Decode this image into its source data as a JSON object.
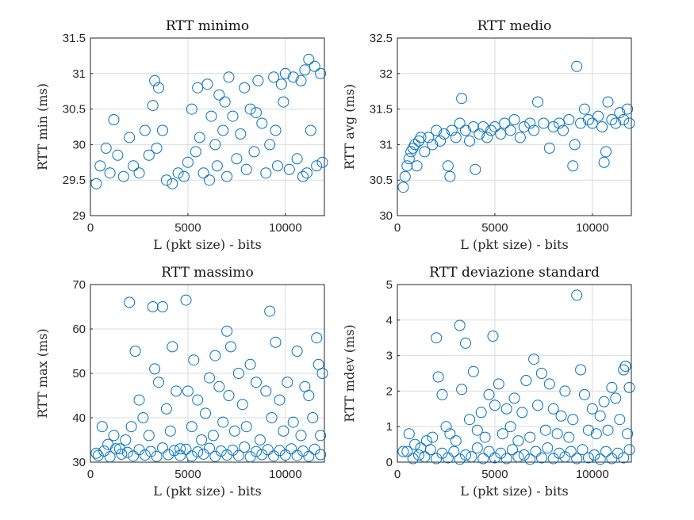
{
  "marker_color": "#0072BD",
  "chart_data": [
    {
      "type": "scatter",
      "title": "RTT minimo",
      "xlabel": "L (pkt size) - bits",
      "ylabel": "RTT min (ms)",
      "xlim": [
        0,
        12000
      ],
      "ylim": [
        29,
        31.5
      ],
      "xticks": [
        0,
        5000,
        10000
      ],
      "yticks": [
        29,
        29.5,
        30,
        30.5,
        31,
        31.5
      ],
      "ytick_labels": [
        "29",
        "29.5",
        "30",
        "30.5",
        "31",
        "31.5"
      ],
      "grid": true,
      "series": [
        {
          "x": [
            300,
            500,
            800,
            1000,
            1200,
            1400,
            1700,
            2000,
            2200,
            2500,
            2800,
            3000,
            3200,
            3400,
            3500,
            3700,
            3900,
            4200,
            4500,
            4800,
            5000,
            5200,
            5400,
            5500,
            5600,
            5800,
            6000,
            6100,
            6200,
            6400,
            6500,
            6600,
            6800,
            7000,
            7100,
            7300,
            7500,
            7700,
            7900,
            8000,
            8200,
            8400,
            8600,
            8800,
            9000,
            9200,
            9400,
            9500,
            9600,
            9800,
            10000,
            10200,
            10400,
            10600,
            10800,
            11000,
            11100,
            11300,
            11500,
            11600,
            11800,
            11900,
            3300,
            6900,
            8500,
            9900,
            10900,
            11200
          ],
          "y": [
            29.45,
            29.7,
            29.95,
            29.6,
            30.35,
            29.85,
            29.55,
            30.1,
            29.7,
            29.6,
            30.2,
            29.85,
            30.55,
            29.95,
            30.8,
            30.2,
            29.5,
            29.45,
            29.6,
            29.55,
            29.75,
            30.5,
            29.9,
            30.8,
            30.1,
            29.6,
            30.85,
            29.5,
            30.4,
            30.0,
            29.7,
            30.7,
            30.2,
            29.55,
            30.95,
            30.4,
            29.8,
            30.15,
            30.8,
            29.65,
            30.5,
            29.9,
            30.9,
            30.3,
            29.6,
            30.0,
            30.95,
            30.2,
            29.7,
            30.85,
            31.0,
            29.65,
            30.95,
            29.8,
            30.9,
            31.05,
            29.6,
            30.2,
            31.1,
            29.7,
            31.0,
            29.75,
            30.9,
            30.6,
            30.45,
            30.6,
            29.55,
            31.2
          ]
        }
      ]
    },
    {
      "type": "scatter",
      "title": "RTT medio",
      "xlabel": "L (pkt size) - bits",
      "ylabel": "RTT avg (ms)",
      "xlim": [
        0,
        12000
      ],
      "ylim": [
        30,
        32.5
      ],
      "xticks": [
        0,
        5000,
        10000
      ],
      "yticks": [
        30,
        30.5,
        31,
        31.5,
        32,
        32.5
      ],
      "ytick_labels": [
        "30",
        "30.5",
        "31",
        "31.5",
        "32",
        "32.5"
      ],
      "grid": true,
      "series": [
        {
          "x": [
            300,
            400,
            500,
            600,
            700,
            800,
            900,
            1000,
            1100,
            1200,
            1400,
            1600,
            1800,
            2000,
            2200,
            2400,
            2600,
            2700,
            2800,
            3000,
            3200,
            3300,
            3500,
            3700,
            3900,
            4000,
            4200,
            4400,
            4600,
            4800,
            5000,
            5300,
            5500,
            5800,
            6000,
            6300,
            6500,
            6800,
            7000,
            7200,
            7500,
            7800,
            8000,
            8300,
            8500,
            8800,
            9000,
            9100,
            9200,
            9400,
            9600,
            9800,
            10000,
            10300,
            10500,
            10600,
            10700,
            10800,
            11000,
            11200,
            11400,
            11600,
            11800,
            11900
          ],
          "y": [
            30.4,
            30.55,
            30.7,
            30.8,
            30.9,
            30.95,
            31.0,
            30.7,
            31.05,
            31.1,
            30.9,
            31.1,
            31.0,
            31.2,
            31.05,
            31.15,
            30.7,
            30.55,
            31.2,
            31.1,
            31.3,
            31.65,
            31.2,
            31.05,
            31.25,
            30.65,
            31.15,
            31.25,
            31.1,
            31.2,
            31.25,
            31.15,
            31.3,
            31.2,
            31.35,
            31.1,
            31.25,
            31.3,
            31.2,
            31.6,
            31.3,
            30.95,
            31.25,
            31.3,
            31.2,
            31.35,
            30.7,
            31.0,
            32.1,
            31.3,
            31.5,
            31.35,
            31.3,
            31.4,
            31.25,
            30.75,
            30.9,
            31.6,
            31.35,
            31.3,
            31.45,
            31.35,
            31.5,
            31.3
          ]
        }
      ]
    },
    {
      "type": "scatter",
      "title": "RTT massimo",
      "xlabel": "L (pkt size) - bits",
      "ylabel": "RTT max (ms)",
      "xlim": [
        0,
        12000
      ],
      "ylim": [
        30,
        70
      ],
      "xticks": [
        0,
        5000,
        10000
      ],
      "yticks": [
        30,
        40,
        50,
        60,
        70
      ],
      "ytick_labels": [
        "30",
        "40",
        "50",
        "60",
        "70"
      ],
      "grid": true,
      "series": [
        {
          "x": [
            300,
            600,
            900,
            1200,
            1500,
            1800,
            2000,
            2100,
            2300,
            2500,
            2700,
            3000,
            3200,
            3300,
            3500,
            3700,
            3900,
            4100,
            4200,
            4400,
            4600,
            4900,
            5000,
            5200,
            5300,
            5500,
            5700,
            5900,
            6100,
            6300,
            6400,
            6600,
            6800,
            7000,
            7100,
            7200,
            7400,
            7600,
            7800,
            8000,
            8200,
            8500,
            8700,
            9000,
            9200,
            9300,
            9500,
            9700,
            9900,
            10100,
            10400,
            10600,
            10800,
            11000,
            11200,
            11400,
            11600,
            11700,
            11800,
            11900,
            400,
            1000,
            1600,
            2200,
            2800,
            3400,
            4000,
            4600,
            5200,
            5800,
            6400,
            7000,
            7600,
            8200,
            8800,
            9400,
            10000,
            10600,
            11200,
            11800,
            700,
            1300,
            1900,
            2500,
            3100,
            3700,
            4300,
            4900,
            5500,
            6100,
            6700,
            7300,
            7900,
            8500,
            9100,
            9700,
            10300,
            10900,
            11500
          ],
          "y": [
            32,
            38,
            34,
            36,
            33,
            35,
            66,
            38,
            55,
            44,
            40,
            36,
            65,
            51,
            48,
            65,
            42,
            37,
            56,
            46,
            33,
            66.5,
            46,
            38,
            53,
            44,
            35,
            41,
            49,
            36,
            54,
            47,
            39,
            59.5,
            45,
            56,
            37,
            50,
            43,
            38,
            52,
            48,
            35,
            46,
            64,
            40,
            57,
            44,
            37,
            48,
            39,
            55,
            36,
            47,
            45,
            40,
            58,
            52,
            36,
            50,
            31.5,
            31.2,
            31.8,
            31.4,
            31.6,
            31.3,
            31.7,
            31.5,
            31.4,
            31.8,
            31.3,
            31.6,
            31.5,
            31.2,
            31.7,
            31.4,
            31.6,
            31.5,
            31.3,
            31.7,
            32.5,
            33,
            32.2,
            32.8,
            32.4,
            33.2,
            32.6,
            32.9,
            32.3,
            33.1,
            32.5,
            32.7,
            33.4,
            32.4,
            32.8,
            32.6,
            33.0,
            32.5,
            32.9
          ]
        }
      ]
    },
    {
      "type": "scatter",
      "title": "RTT deviazione standard",
      "xlabel": "L (pkt size) - bits",
      "ylabel": "RTT mdev (ms)",
      "xlim": [
        0,
        12000
      ],
      "ylim": [
        0,
        5
      ],
      "xticks": [
        0,
        5000,
        10000
      ],
      "yticks": [
        0,
        1,
        2,
        3,
        4,
        5
      ],
      "ytick_labels": [
        "0",
        "1",
        "2",
        "3",
        "4",
        "5"
      ],
      "grid": true,
      "series": [
        {
          "x": [
            300,
            600,
            900,
            1200,
            1500,
            1800,
            2000,
            2100,
            2300,
            2500,
            2700,
            3000,
            3200,
            3300,
            3500,
            3700,
            3900,
            4100,
            4300,
            4500,
            4700,
            4900,
            5000,
            5200,
            5400,
            5600,
            5800,
            6000,
            6200,
            6400,
            6600,
            6800,
            7000,
            7200,
            7400,
            7600,
            7800,
            8000,
            8200,
            8400,
            8600,
            8800,
            9000,
            9200,
            9400,
            9600,
            9800,
            10000,
            10200,
            10400,
            10600,
            10800,
            11000,
            11200,
            11400,
            11600,
            11700,
            11800,
            11900,
            500,
            1100,
            1700,
            2300,
            2900,
            3500,
            4100,
            4700,
            5300,
            5900,
            6500,
            7100,
            7700,
            8300,
            8900,
            9500,
            10100,
            10700,
            11300,
            11900,
            800,
            1400,
            2000,
            2600,
            3200,
            3800,
            4400,
            5000,
            5600,
            6200,
            6800,
            7400,
            8000,
            8600,
            9200,
            9800,
            10400,
            11000,
            11600
          ],
          "y": [
            0.3,
            0.8,
            0.5,
            0.4,
            0.6,
            0.7,
            3.5,
            2.4,
            1.9,
            1.0,
            0.8,
            0.6,
            3.85,
            2.05,
            3.35,
            1.2,
            2.55,
            0.9,
            1.4,
            0.7,
            1.9,
            3.55,
            1.6,
            2.2,
            0.8,
            1.5,
            1.0,
            1.8,
            0.6,
            1.4,
            2.3,
            0.7,
            2.9,
            1.6,
            2.5,
            0.9,
            2.2,
            1.5,
            0.8,
            1.3,
            2.0,
            0.7,
            1.2,
            4.7,
            2.6,
            1.9,
            0.9,
            1.5,
            0.8,
            1.3,
            1.7,
            0.9,
            2.1,
            1.8,
            1.2,
            2.6,
            2.7,
            0.8,
            2.1,
            0.3,
            0.2,
            0.35,
            0.25,
            0.3,
            0.2,
            0.4,
            0.3,
            0.25,
            0.35,
            0.2,
            0.3,
            0.4,
            0.25,
            0.3,
            0.35,
            0.2,
            0.3,
            0.25,
            0.35,
            0.1,
            0.15,
            0.1,
            0.12,
            0.08,
            0.15,
            0.1,
            0.12,
            0.1,
            0.15,
            0.08,
            0.12,
            0.1,
            0.15,
            0.1,
            0.12,
            0.08,
            0.1,
            0.12
          ]
        }
      ]
    }
  ]
}
